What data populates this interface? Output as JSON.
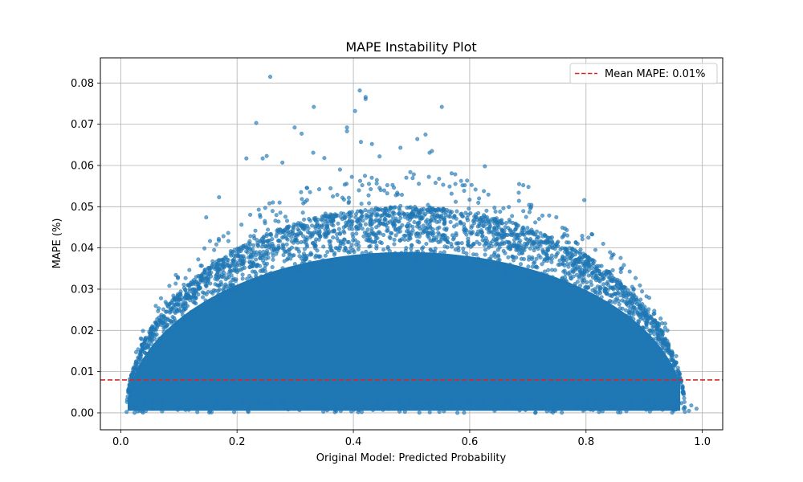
{
  "chart_data": {
    "type": "scatter",
    "title": "MAPE Instability Plot",
    "xlabel": "Original Model: Predicted Probability",
    "ylabel": "MAPE (%)",
    "xlim": [
      -0.035,
      1.035
    ],
    "ylim": [
      -0.0041,
      0.0861
    ],
    "xticks": [
      0.0,
      0.2,
      0.4,
      0.6,
      0.8,
      1.0
    ],
    "xtick_labels": [
      "0.0",
      "0.2",
      "0.4",
      "0.6",
      "0.8",
      "1.0"
    ],
    "yticks": [
      0.0,
      0.01,
      0.02,
      0.03,
      0.04,
      0.05,
      0.06,
      0.07,
      0.08
    ],
    "ytick_labels": [
      "0.00",
      "0.01",
      "0.02",
      "0.03",
      "0.04",
      "0.05",
      "0.06",
      "0.07",
      "0.08"
    ],
    "grid": true,
    "legend_position": "top-right",
    "colors": {
      "points": "#1f77b4",
      "mean_line": "#d62728",
      "grid": "#b0b0b0"
    },
    "series": [
      {
        "kind": "scatter",
        "envelope": "dense cloud filling 0 <= MAPE <= 0.05*sqrt(1-((p-0.49)/0.48)^2) for p in [0.01, 0.97]",
        "x_range": [
          0.01,
          0.99
        ],
        "y_range": [
          0.0,
          0.0815
        ],
        "notable_points": [
          [
            0.257,
            0.0815
          ],
          [
            0.411,
            0.0782
          ],
          [
            0.421,
            0.0766
          ],
          [
            0.421,
            0.0761
          ],
          [
            0.332,
            0.0742
          ],
          [
            0.552,
            0.0742
          ],
          [
            0.403,
            0.0732
          ],
          [
            0.233,
            0.0703
          ],
          [
            0.299,
            0.0692
          ],
          [
            0.389,
            0.0692
          ],
          [
            0.389,
            0.0683
          ],
          [
            0.311,
            0.0677
          ],
          [
            0.524,
            0.0675
          ],
          [
            0.51,
            0.0664
          ],
          [
            0.413,
            0.0657
          ],
          [
            0.432,
            0.0652
          ],
          [
            0.481,
            0.0643
          ],
          [
            0.535,
            0.0635
          ],
          [
            0.531,
            0.0631
          ],
          [
            0.445,
            0.0622
          ],
          [
            0.331,
            0.0631
          ],
          [
            0.35,
            0.0618
          ],
          [
            0.216,
            0.0617
          ],
          [
            0.251,
            0.0623
          ],
          [
            0.244,
            0.0617
          ],
          [
            0.626,
            0.0598
          ],
          [
            0.377,
            0.059
          ],
          [
            0.278,
            0.0607
          ],
          [
            0.685,
            0.0555
          ],
          [
            0.692,
            0.0552
          ],
          [
            0.701,
            0.0548
          ],
          [
            0.797,
            0.0516
          ],
          [
            0.169,
            0.0523
          ],
          [
            0.147,
            0.0474
          ],
          [
            0.939,
            0.01
          ],
          [
            0.99,
            0.001
          ],
          [
            0.981,
            0.0018
          ],
          [
            0.977,
            0.0005
          ]
        ]
      },
      {
        "kind": "hline",
        "name": "Mean MAPE: 0.01%",
        "y": 0.008,
        "style": "dashed"
      }
    ],
    "legend": [
      "Mean MAPE: 0.01%"
    ]
  }
}
